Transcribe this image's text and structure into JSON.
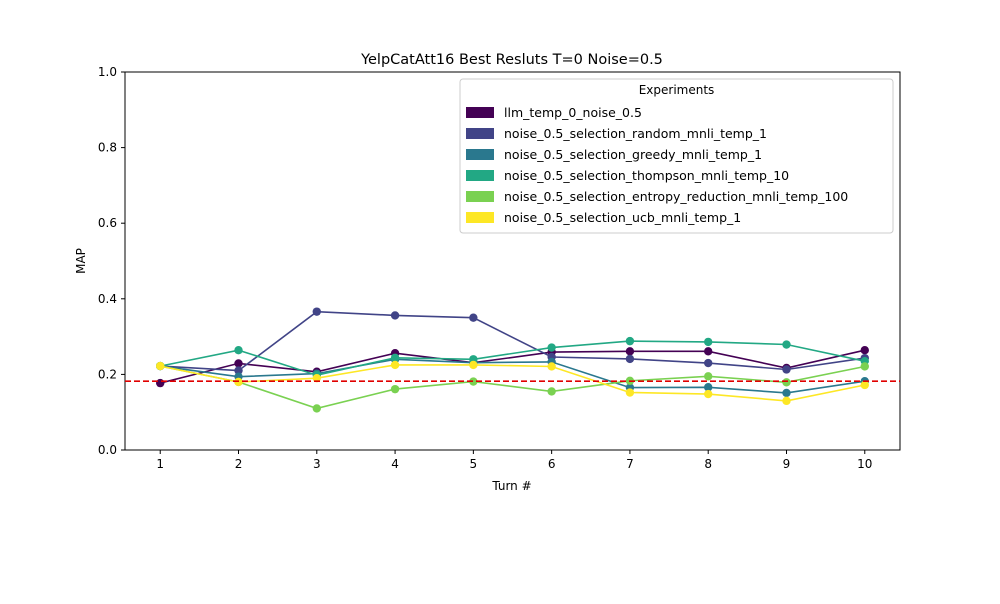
{
  "chart_data": {
    "type": "line",
    "title": "YelpCatAtt16 Best Resluts T=0 Noise=0.5",
    "xlabel": "Turn #",
    "ylabel": "MAP",
    "x": [
      1,
      2,
      3,
      4,
      5,
      6,
      7,
      8,
      9,
      10
    ],
    "xticks": [
      "1",
      "2",
      "3",
      "4",
      "5",
      "6",
      "7",
      "8",
      "9",
      "10"
    ],
    "yticks": [
      "0.0",
      "0.2",
      "0.4",
      "0.6",
      "0.8",
      "1.0"
    ],
    "xlim": [
      0.55,
      10.45
    ],
    "ylim": [
      0.0,
      1.0
    ],
    "grid": false,
    "legend": {
      "title": "Experiments",
      "placement": "top-right"
    },
    "baseline": {
      "y": 0.182,
      "color": "#e00000",
      "style": "dashed"
    },
    "series": [
      {
        "name": "llm_temp_0_noise_0.5",
        "color": "#440154",
        "values": [
          0.177,
          0.229,
          0.207,
          0.256,
          0.231,
          0.259,
          0.261,
          0.261,
          0.217,
          0.264
        ]
      },
      {
        "name": "noise_0.5_selection_random_mnli_temp_1",
        "color": "#414487",
        "values": [
          0.222,
          0.21,
          0.366,
          0.356,
          0.35,
          0.246,
          0.241,
          0.23,
          0.213,
          0.243
        ]
      },
      {
        "name": "noise_0.5_selection_greedy_mnli_temp_1",
        "color": "#2a788e",
        "values": [
          0.222,
          0.194,
          0.202,
          0.24,
          0.231,
          0.233,
          0.165,
          0.166,
          0.151,
          0.182
        ]
      },
      {
        "name": "noise_0.5_selection_thompson_mnli_temp_10",
        "color": "#22a884",
        "values": [
          0.222,
          0.264,
          0.198,
          0.244,
          0.24,
          0.271,
          0.288,
          0.286,
          0.279,
          0.235
        ]
      },
      {
        "name": "noise_0.5_selection_entropy_reduction_mnli_temp_100",
        "color": "#7ad151",
        "values": [
          0.222,
          0.18,
          0.11,
          0.161,
          0.181,
          0.155,
          0.183,
          0.195,
          0.179,
          0.221
        ]
      },
      {
        "name": "noise_0.5_selection_ucb_mnli_temp_1",
        "color": "#fde725",
        "values": [
          0.222,
          0.18,
          0.19,
          0.225,
          0.225,
          0.221,
          0.152,
          0.148,
          0.13,
          0.172
        ]
      }
    ]
  }
}
